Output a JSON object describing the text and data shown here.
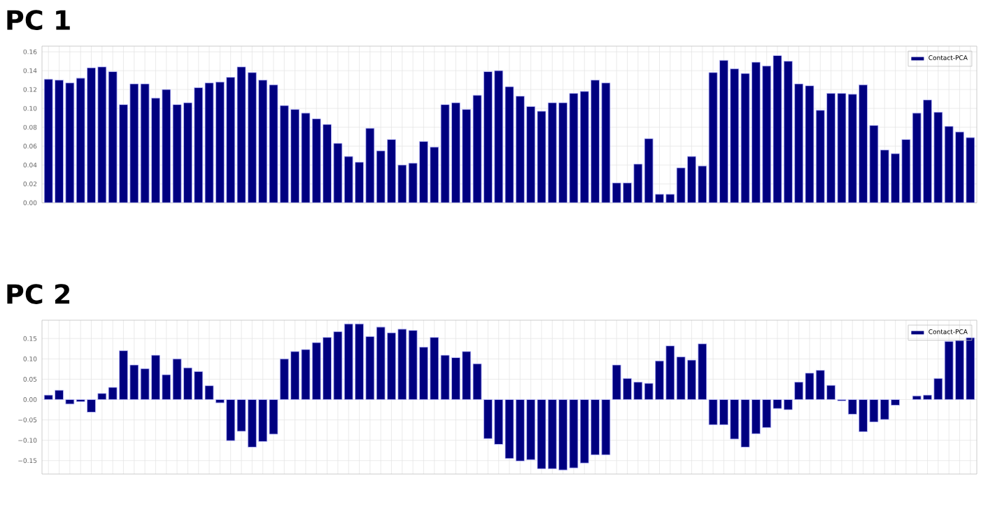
{
  "chart_data": [
    {
      "type": "bar",
      "title": "PC 1",
      "categories": [
        null,
        null,
        null,
        null,
        null,
        null,
        null,
        null,
        null,
        null,
        null,
        null,
        null,
        null,
        null,
        null,
        null,
        null,
        null,
        null,
        null,
        null,
        null,
        null,
        null,
        null,
        null,
        null,
        null,
        null,
        null,
        null,
        null,
        null,
        null,
        null,
        null,
        null,
        null,
        null,
        null,
        null,
        null,
        null,
        null,
        null,
        null,
        null,
        null,
        null,
        null,
        null,
        null,
        null,
        null,
        null,
        null,
        null,
        null,
        null,
        null,
        null,
        null,
        null,
        null,
        null,
        null,
        null,
        null,
        null,
        null,
        null,
        null,
        null,
        null,
        null,
        null,
        null,
        null,
        null,
        null,
        null,
        null,
        null,
        null,
        null,
        null
      ],
      "series": [
        {
          "name": "Contact-PCA",
          "color": "#000080",
          "values": [
            0.131,
            0.13,
            0.127,
            0.132,
            0.143,
            0.144,
            0.139,
            0.104,
            0.126,
            0.126,
            0.111,
            0.12,
            0.104,
            0.106,
            0.122,
            0.127,
            0.128,
            0.133,
            0.144,
            0.138,
            0.13,
            0.125,
            0.103,
            0.099,
            0.095,
            0.089,
            0.083,
            0.063,
            0.049,
            0.043,
            0.079,
            0.055,
            0.067,
            0.04,
            0.042,
            0.065,
            0.059,
            0.104,
            0.106,
            0.099,
            0.114,
            0.139,
            0.14,
            0.123,
            0.113,
            0.102,
            0.097,
            0.106,
            0.106,
            0.116,
            0.118,
            0.13,
            0.127,
            0.021,
            0.021,
            0.041,
            0.068,
            0.009,
            0.009,
            0.037,
            0.049,
            0.039,
            0.138,
            0.151,
            0.142,
            0.137,
            0.149,
            0.145,
            0.156,
            0.15,
            0.126,
            0.124,
            0.098,
            0.116,
            0.116,
            0.115,
            0.125,
            0.082,
            0.056,
            0.052,
            0.067,
            0.095,
            0.109,
            0.096,
            0.081,
            0.075,
            0.069
          ]
        }
      ],
      "ylim": [
        0,
        0.166
      ],
      "yticks": [
        {
          "value": 0,
          "label": "0.00"
        },
        0.02,
        0.04,
        0.06,
        0.08,
        {
          "value": 0.1,
          "label": "0.10"
        },
        0.12,
        0.14,
        0.16
      ],
      "grid": true,
      "legend": "top right"
    },
    {
      "type": "bar",
      "title": "PC 2",
      "categories": [
        null,
        null,
        null,
        null,
        null,
        null,
        null,
        null,
        null,
        null,
        null,
        null,
        null,
        null,
        null,
        null,
        null,
        null,
        null,
        null,
        null,
        null,
        null,
        null,
        null,
        null,
        null,
        null,
        null,
        null,
        null,
        null,
        null,
        null,
        null,
        null,
        null,
        null,
        null,
        null,
        null,
        null,
        null,
        null,
        null,
        null,
        null,
        null,
        null,
        null,
        null,
        null,
        null,
        null,
        null,
        null,
        null,
        null,
        null,
        null,
        null,
        null,
        null,
        null,
        null,
        null,
        null,
        null,
        null,
        null,
        null,
        null,
        null,
        null,
        null,
        null,
        null,
        null,
        null,
        null,
        null,
        null,
        null,
        null,
        null,
        null,
        null
      ],
      "series": [
        {
          "name": "Contact-PCA",
          "color": "#000080",
          "values": [
            0.011,
            0.023,
            -0.011,
            -0.005,
            -0.031,
            0.015,
            0.03,
            0.12,
            0.085,
            0.076,
            0.109,
            0.061,
            0.1,
            0.078,
            0.069,
            0.034,
            -0.008,
            -0.101,
            -0.078,
            -0.117,
            -0.103,
            -0.085,
            0.1,
            0.118,
            0.123,
            0.14,
            0.153,
            0.167,
            0.186,
            0.186,
            0.155,
            0.178,
            0.164,
            0.173,
            0.17,
            0.129,
            0.153,
            0.109,
            0.103,
            0.118,
            0.088,
            -0.096,
            -0.11,
            -0.145,
            -0.151,
            -0.148,
            -0.17,
            -0.17,
            -0.173,
            -0.168,
            -0.156,
            -0.136,
            -0.136,
            0.085,
            0.052,
            0.043,
            0.04,
            0.095,
            0.132,
            0.105,
            0.097,
            0.137,
            -0.062,
            -0.062,
            -0.097,
            -0.117,
            -0.084,
            -0.069,
            -0.022,
            -0.025,
            0.043,
            0.065,
            0.072,
            0.035,
            -0.003,
            -0.036,
            -0.079,
            -0.055,
            -0.049,
            -0.014,
            null,
            0.009,
            0.011,
            0.052,
            0.143,
            0.145,
            0.152
          ]
        }
      ],
      "ylim": [
        -0.183,
        0.195
      ],
      "yticks": [
        {
          "value": -0.15,
          "label": "−0.15"
        },
        {
          "value": -0.1,
          "label": "−0.10"
        },
        {
          "value": -0.05,
          "label": "−0.05"
        },
        {
          "value": 0,
          "label": "0.00"
        },
        0.05,
        {
          "value": 0.1,
          "label": "0.10"
        },
        0.15
      ],
      "grid": true,
      "legend": "top right"
    }
  ]
}
